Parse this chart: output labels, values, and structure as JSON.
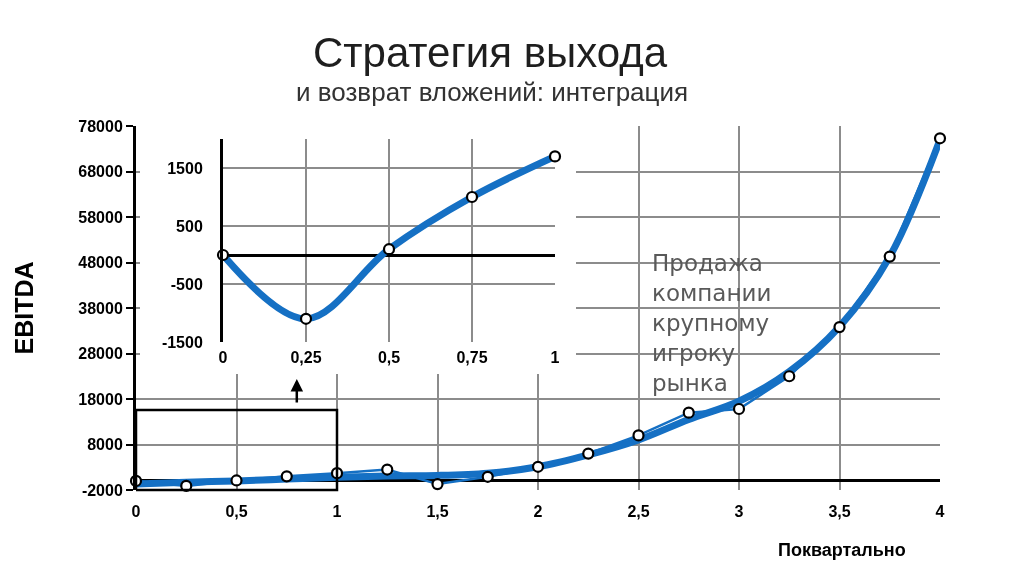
{
  "chart_data": [
    {
      "type": "line",
      "title": "Стратегия выхода",
      "subtitle": "и возврат вложений: интеграция",
      "xlabel": "Поквартально",
      "ylabel": "EBITDA",
      "annotations": [
        "Продажа компании крупному игроку рынка"
      ],
      "x": [
        0,
        0.25,
        0.5,
        0.75,
        1,
        1.25,
        1.5,
        1.75,
        2,
        2.25,
        2.5,
        2.75,
        3,
        3.25,
        3.5,
        3.75,
        4
      ],
      "series": [
        {
          "color": "#1570c4",
          "marker": "none",
          "values": [
            -700,
            -300,
            0,
            400,
            800,
            1100,
            1200,
            1700,
            3100,
            5700,
            9000,
            13500,
            17500,
            24000,
            33900,
            49300,
            75000
          ]
        },
        {
          "color": "#1570c4",
          "values": [
            0,
            -1100,
            100,
            1000,
            1700,
            2500,
            -700,
            900,
            3100,
            6000,
            10000,
            15000,
            15800,
            23000,
            33800,
            49300,
            75300
          ]
        }
      ],
      "xlim": [
        0,
        4
      ],
      "xticks": [
        0,
        {
          "value": 0.5,
          "label": "0,5"
        },
        1,
        {
          "value": 1.5,
          "label": "1,5"
        },
        2,
        {
          "value": 2.5,
          "label": "2,5"
        },
        3,
        {
          "value": 3.5,
          "label": "3,5"
        },
        4
      ],
      "ylim": [
        -2000,
        78000
      ],
      "yticks": [
        -2000,
        8000,
        18000,
        28000,
        38000,
        48000,
        58000,
        68000,
        78000
      ],
      "grid": true,
      "marker": "circle"
    },
    {
      "type": "line",
      "x": [
        0,
        0.25,
        0.5,
        0.75,
        1
      ],
      "series": [
        {
          "color": "#1570c4",
          "values": [
            0,
            -1100,
            100,
            1000,
            1700
          ]
        }
      ],
      "xlim": [
        0,
        1
      ],
      "xticks": [
        0,
        {
          "value": 0.25,
          "label": "0,25"
        },
        {
          "value": 0.5,
          "label": "0,5"
        },
        {
          "value": 0.75,
          "label": "0,75"
        },
        1
      ],
      "ylim": [
        -1500,
        2000
      ],
      "yticks": [
        -1500,
        -500,
        500,
        1500
      ],
      "grid": true,
      "marker": "circle"
    }
  ]
}
